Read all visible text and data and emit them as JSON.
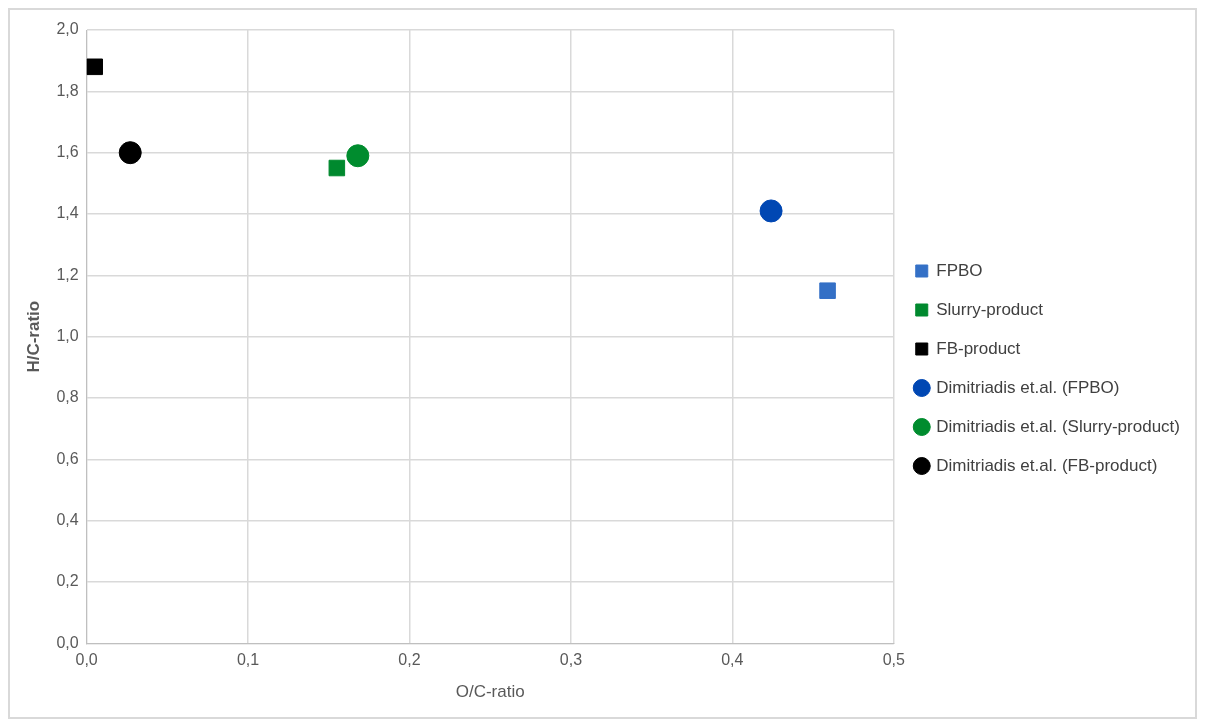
{
  "chart_data": {
    "type": "scatter",
    "xlabel": "O/C-ratio",
    "ylabel": "H/C-ratio",
    "xlim": [
      0,
      0.5
    ],
    "ylim": [
      0,
      2
    ],
    "xticks": [
      {
        "value": 0,
        "label": "0,0"
      },
      {
        "value": 0.1,
        "label": "0,1"
      },
      {
        "value": 0.2,
        "label": "0,2"
      },
      {
        "value": 0.3,
        "label": "0,3"
      },
      {
        "value": 0.4,
        "label": "0,4"
      },
      {
        "value": 0.5,
        "label": "0,5"
      }
    ],
    "yticks": [
      {
        "value": 0,
        "label": "0,0"
      },
      {
        "value": 0.2,
        "label": "0,2"
      },
      {
        "value": 0.4,
        "label": "0,4"
      },
      {
        "value": 0.6,
        "label": "0,6"
      },
      {
        "value": 0.8,
        "label": "0,8"
      },
      {
        "value": 1,
        "label": "1,0"
      },
      {
        "value": 1.2,
        "label": "1,2"
      },
      {
        "value": 1.4,
        "label": "1,4"
      },
      {
        "value": 1.6,
        "label": "1,6"
      },
      {
        "value": 1.8,
        "label": "1,8"
      },
      {
        "value": 2,
        "label": "2,0"
      }
    ],
    "grid": true,
    "legend": "right",
    "series": [
      {
        "name": "FPBO",
        "color": "#3470c6",
        "marker": "square",
        "x": [
          0.459
        ],
        "values": [
          1.15
        ]
      },
      {
        "name": "Slurry-product",
        "color": "#00892e",
        "marker": "square",
        "x": [
          0.155
        ],
        "values": [
          1.55
        ]
      },
      {
        "name": "FB-product",
        "color": "#000000",
        "marker": "square",
        "x": [
          0.005
        ],
        "values": [
          1.88
        ]
      },
      {
        "name": "Dimitriadis et.al. (FPBO)",
        "color": "#0047b3",
        "marker": "circle",
        "x": [
          0.424
        ],
        "values": [
          1.41
        ]
      },
      {
        "name": "Dimitriadis et.al. (Slurry-product)",
        "color": "#008c2e",
        "marker": "circle",
        "x": [
          0.168
        ],
        "values": [
          1.59
        ]
      },
      {
        "name": "Dimitriadis et.al. (FB-product)",
        "color": "#000000",
        "marker": "circle",
        "x": [
          0.027
        ],
        "values": [
          1.6
        ]
      }
    ]
  }
}
